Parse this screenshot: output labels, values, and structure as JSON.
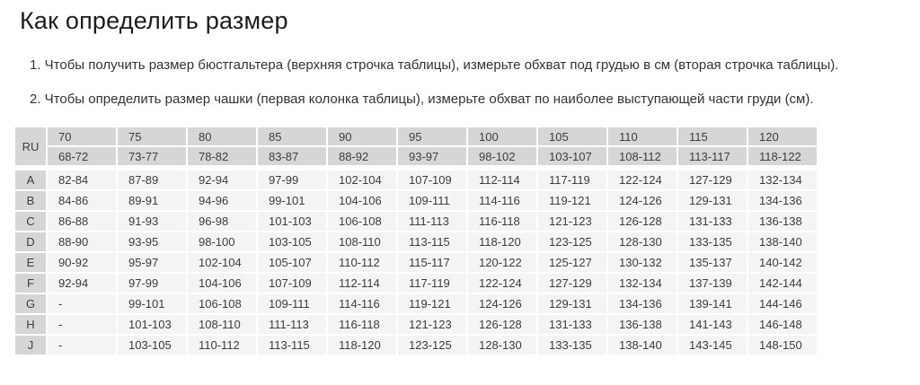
{
  "page": {
    "title": "Как определить размер",
    "instructions": [
      "1. Чтобы получить размер бюстгальтера (верхняя строчка таблицы), измерьте обхват под грудью в см (вторая строчка таблицы).",
      "2. Чтобы определить размер чашки (первая колонка таблицы), измерьте обхват по наиболее выступающей части груди (см)."
    ]
  },
  "table": {
    "corner_label": "RU",
    "band_sizes": [
      "70",
      "75",
      "80",
      "85",
      "90",
      "95",
      "100",
      "105",
      "110",
      "115",
      "120"
    ],
    "underbust_ranges": [
      "68-72",
      "73-77",
      "78-82",
      "83-87",
      "88-92",
      "93-97",
      "98-102",
      "103-107",
      "108-112",
      "113-117",
      "118-122"
    ],
    "rows": [
      {
        "cup": "A",
        "values": [
          "82-84",
          "87-89",
          "92-94",
          "97-99",
          "102-104",
          "107-109",
          "112-114",
          "117-119",
          "122-124",
          "127-129",
          "132-134"
        ]
      },
      {
        "cup": "B",
        "values": [
          "84-86",
          "89-91",
          "94-96",
          "99-101",
          "104-106",
          "109-111",
          "114-116",
          "119-121",
          "124-126",
          "129-131",
          "134-136"
        ]
      },
      {
        "cup": "C",
        "values": [
          "86-88",
          "91-93",
          "96-98",
          "101-103",
          "106-108",
          "111-113",
          "116-118",
          "121-123",
          "126-128",
          "131-133",
          "136-138"
        ]
      },
      {
        "cup": "D",
        "values": [
          "88-90",
          "93-95",
          "98-100",
          "103-105",
          "108-110",
          "113-115",
          "118-120",
          "123-125",
          "128-130",
          "133-135",
          "138-140"
        ]
      },
      {
        "cup": "E",
        "values": [
          "90-92",
          "95-97",
          "102-104",
          "105-107",
          "110-112",
          "115-117",
          "120-122",
          "125-127",
          "130-132",
          "135-137",
          "140-142"
        ]
      },
      {
        "cup": "F",
        "values": [
          "92-94",
          "97-99",
          "104-106",
          "107-109",
          "112-114",
          "117-119",
          "122-124",
          "127-129",
          "132-134",
          "137-139",
          "142-144"
        ]
      },
      {
        "cup": "G",
        "values": [
          "-",
          "99-101",
          "106-108",
          "109-111",
          "114-116",
          "119-121",
          "124-126",
          "129-131",
          "134-136",
          "139-141",
          "144-146"
        ]
      },
      {
        "cup": "H",
        "values": [
          "-",
          "101-103",
          "108-110",
          "111-113",
          "116-118",
          "121-123",
          "126-128",
          "131-133",
          "136-138",
          "141-143",
          "146-148"
        ]
      },
      {
        "cup": "J",
        "values": [
          "-",
          "103-105",
          "110-112",
          "113-115",
          "118-120",
          "123-125",
          "128-130",
          "133-135",
          "138-140",
          "143-145",
          "148-150"
        ]
      }
    ]
  },
  "colors": {
    "header_cell_bg": "#d6d6d7",
    "data_cell_bg": "#f4f4f5",
    "text": "#3d3d3d",
    "title_text": "#1c1c1c"
  }
}
